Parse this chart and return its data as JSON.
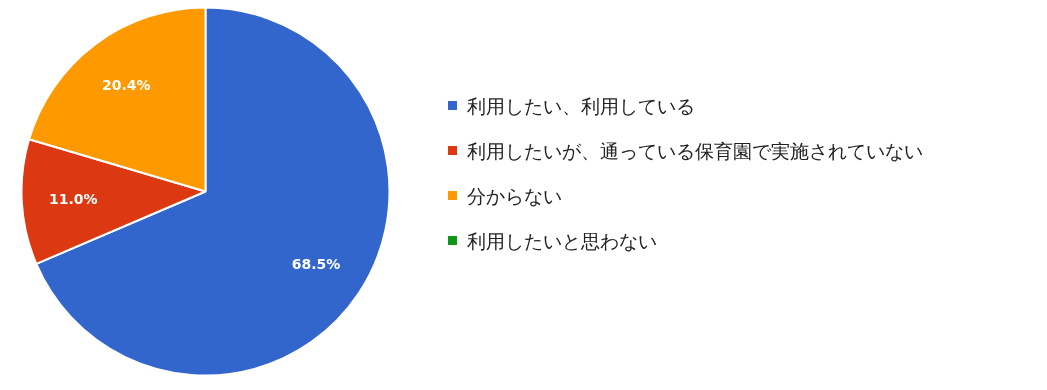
{
  "chart_data": {
    "type": "pie",
    "categories": [
      "利用したい、利用している",
      "利用したいが、通っている保育園で実施されていない",
      "分からない",
      "利用したいと思わない"
    ],
    "values": [
      68.5,
      11.0,
      20.4,
      0
    ],
    "colors": [
      "#3366cc",
      "#dc3912",
      "#ff9900",
      "#109618"
    ],
    "value_labels": [
      "68.5%",
      "11.0%",
      "20.4%",
      null
    ],
    "legend": "right"
  }
}
